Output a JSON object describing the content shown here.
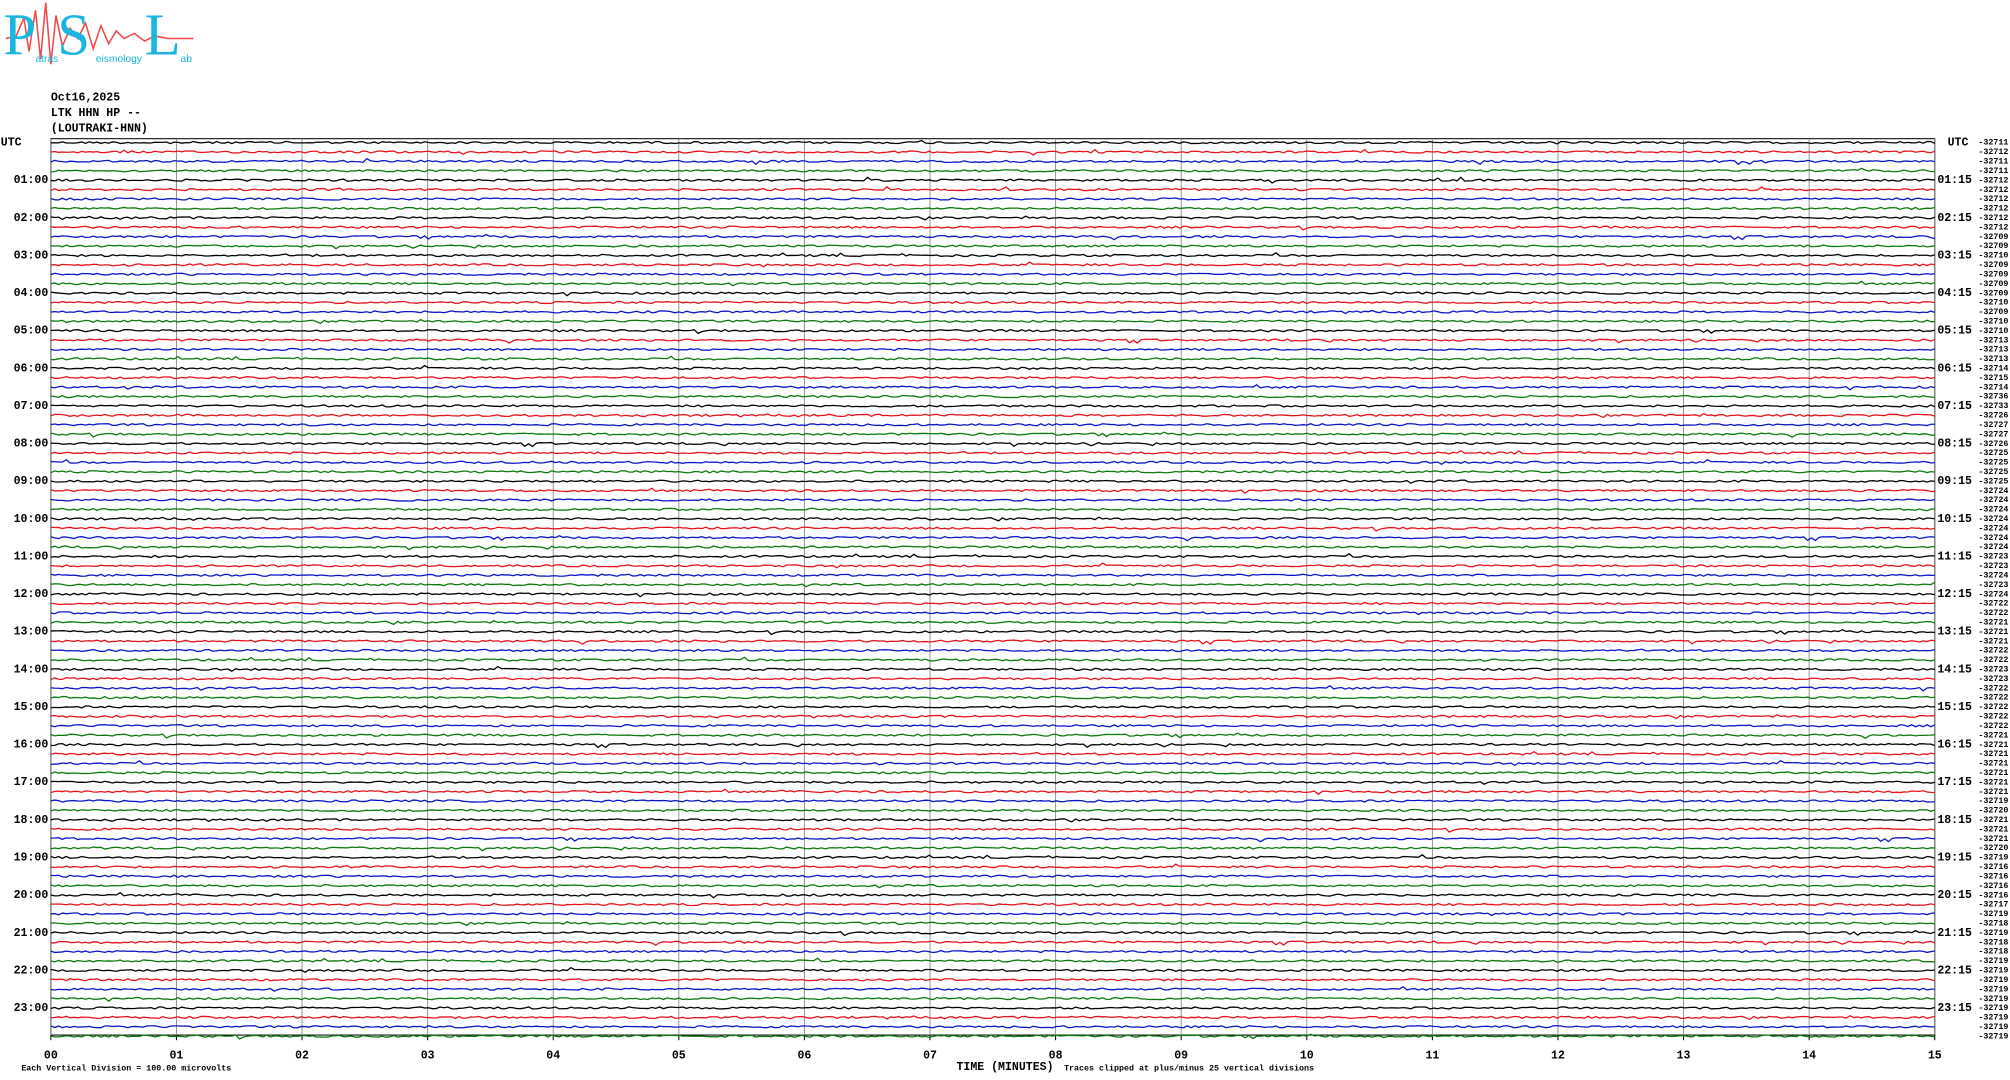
{
  "logo": {
    "big": [
      "P",
      "S",
      "L"
    ],
    "small": [
      "atras",
      "eismology",
      "ab"
    ]
  },
  "chart_data": {
    "type": "helicorder",
    "date": "Oct16,2025",
    "station": "LTK HHN HP --",
    "location": "(LOUTRAKI-HNN)",
    "left_labels": [
      "UTC",
      "01:00",
      "02:00",
      "03:00",
      "04:00",
      "05:00",
      "06:00",
      "07:00",
      "08:00",
      "09:00",
      "10:00",
      "11:00",
      "12:00",
      "13:00",
      "14:00",
      "15:00",
      "16:00",
      "17:00",
      "18:00",
      "19:00",
      "20:00",
      "21:00",
      "22:00",
      "23:00"
    ],
    "right_labels": [
      "UTC",
      "01:15",
      "02:15",
      "03:15",
      "04:15",
      "05:15",
      "06:15",
      "07:15",
      "08:15",
      "09:15",
      "10:15",
      "11:15",
      "12:15",
      "13:15",
      "14:15",
      "15:15",
      "16:15",
      "17:15",
      "18:15",
      "19:15",
      "20:15",
      "21:15",
      "22:15",
      "23:15"
    ],
    "trace_offsets": [
      "-32711",
      "-32712",
      "-32711",
      "-32711",
      "-32712",
      "-32712",
      "-32712",
      "-32712",
      "-32712",
      "-32712",
      "-32709",
      "-32709",
      "-32710",
      "-32709",
      "-32709",
      "-32709",
      "-32709",
      "-32710",
      "-32709",
      "-32710",
      "-32710",
      "-32713",
      "-32713",
      "-32713",
      "-32714",
      "-32715",
      "-32714",
      "-32736",
      "-32733",
      "-32726",
      "-32727",
      "-32727",
      "-32726",
      "-32725",
      "-32725",
      "-32725",
      "-32725",
      "-32724",
      "-32724",
      "-32724",
      "-32724",
      "-32724",
      "-32724",
      "-32724",
      "-32723",
      "-32723",
      "-32724",
      "-32723",
      "-32724",
      "-32722",
      "-32722",
      "-32721",
      "-32721",
      "-32721",
      "-32722",
      "-32722",
      "-32723",
      "-32723",
      "-32722",
      "-32722",
      "-32722",
      "-32722",
      "-32722",
      "-32721",
      "-32721",
      "-32721",
      "-32721",
      "-32721",
      "-32721",
      "-32721",
      "-32719",
      "-32720",
      "-32721",
      "-32721",
      "-32721",
      "-32720",
      "-32719",
      "-32716",
      "-32716",
      "-32716",
      "-32716",
      "-32717",
      "-32719",
      "-32718",
      "-32719",
      "-32718",
      "-32718",
      "-32719",
      "-32719",
      "-32719",
      "-32719",
      "-32719",
      "-32719",
      "-32719",
      "-32719",
      "-32719"
    ],
    "trace_colors": [
      "#000000",
      "#e8111a",
      "#0a14c8",
      "#0a7a0a"
    ],
    "x_label": "TIME (MINUTES)",
    "xlim": [
      0,
      15
    ],
    "xticks": [
      {
        "value": 0,
        "label": "00"
      },
      {
        "value": 1,
        "label": "01"
      },
      {
        "value": 2,
        "label": "02"
      },
      {
        "value": 3,
        "label": "03"
      },
      {
        "value": 4,
        "label": "04"
      },
      {
        "value": 5,
        "label": "05"
      },
      {
        "value": 6,
        "label": "06"
      },
      {
        "value": 7,
        "label": "07"
      },
      {
        "value": 8,
        "label": "08"
      },
      {
        "value": 9,
        "label": "09"
      },
      10,
      11,
      12,
      13,
      14,
      15
    ],
    "grid": true,
    "scale_note": "Each Vertical Division =  100.00 microvolts",
    "clip_note": "Traces clipped at plus/minus 25 vertical divisions"
  }
}
